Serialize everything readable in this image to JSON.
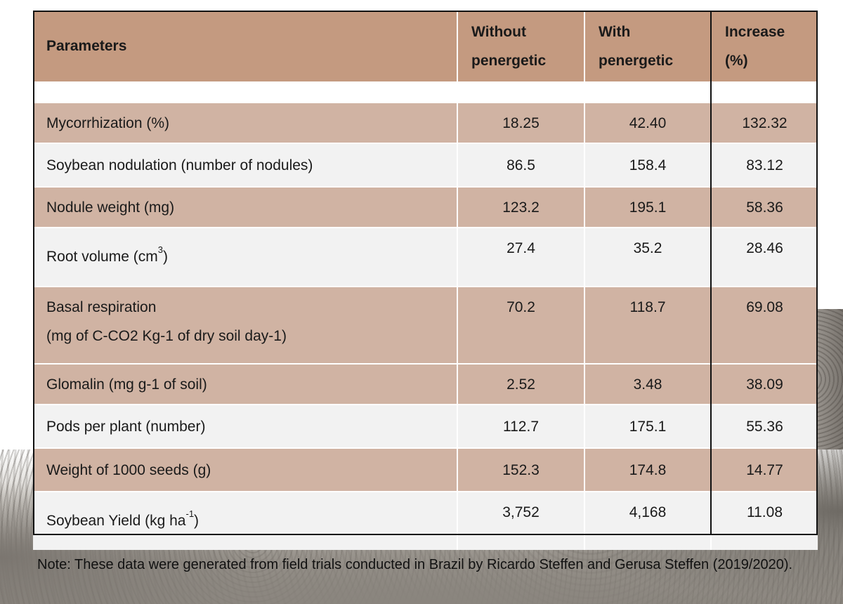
{
  "table": {
    "headers": {
      "parameters": "Parameters",
      "without_l1": "Without",
      "without_l2": "penergetic",
      "with_l1": "With",
      "with_l2": "penergetic",
      "increase_l1": "Increase",
      "increase_l2": "(%)"
    },
    "rows": [
      {
        "label": "Mycorrhization (%)",
        "without": "18.25",
        "with": "42.40",
        "increase": "132.32"
      },
      {
        "label": "Soybean nodulation (number of nodules)",
        "without": "86.5",
        "with": "158.4",
        "increase": "83.12"
      },
      {
        "label": "Nodule weight (mg)",
        "without": "123.2",
        "with": "195.1",
        "increase": "58.36"
      },
      {
        "label": "Root volume (cm",
        "label_sup": "3",
        "label_end": ")",
        "without": "27.4",
        "with": "35.2",
        "increase": "28.46"
      },
      {
        "label": "Basal respiration",
        "label_l2": "(mg of C-CO2 Kg-1 of dry soil day-1)",
        "without": "70.2",
        "with": "118.7",
        "increase": "69.08"
      },
      {
        "label": "Glomalin (mg g-1 of soil)",
        "without": "2.52",
        "with": "3.48",
        "increase": "38.09"
      },
      {
        "label": "Pods per plant (number)",
        "without": "112.7",
        "with": "175.1",
        "increase": "55.36"
      },
      {
        "label": "Weight of 1000 seeds (g)",
        "without": "152.3",
        "with": "174.8",
        "increase": "14.77"
      },
      {
        "label": "Soybean Yield (kg ha",
        "label_sup": "-1",
        "label_end": ")",
        "without": "3,752",
        "with": "4,168",
        "increase": "11.08"
      }
    ]
  },
  "note": "Note: These data were generated from field trials conducted in Brazil by Ricardo Steffen and Gerusa Steffen (2019/2020)."
}
